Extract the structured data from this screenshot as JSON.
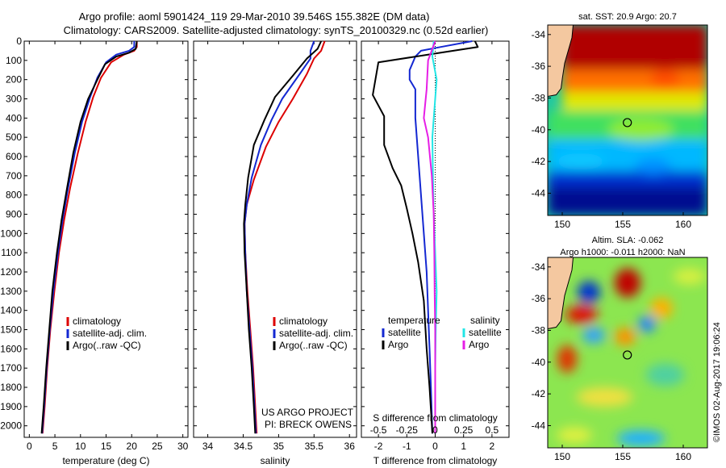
{
  "header": {
    "line1": "Argo profile: aoml 5901424_119 29-Mar-2010 39.546S 155.382E (DM data)",
    "line2": "Climatology: CARS2009. Satellite-adjusted climatology: synTS_20100329.nc (0.52d earlier)"
  },
  "colors": {
    "climatology": "#dd0000",
    "satellite": "#1428d2",
    "argo": "#000000",
    "salinity_satellite": "#22e6e6",
    "salinity_argo": "#e61ee6"
  },
  "depth_axis": {
    "ylim": [
      2060,
      0
    ],
    "ticks": [
      0,
      100,
      200,
      300,
      400,
      500,
      600,
      700,
      800,
      900,
      1000,
      1100,
      1200,
      1300,
      1400,
      1500,
      1600,
      1700,
      1800,
      1900,
      2000
    ]
  },
  "chart_data": [
    {
      "id": "temperature",
      "type": "line",
      "xlabel": "temperature (deg C)",
      "xlim": [
        -1,
        31
      ],
      "xticks": [
        0,
        5,
        10,
        15,
        20,
        25,
        30
      ],
      "legend": [
        "climatology",
        "satellite-adj. clim.",
        "Argo(..raw -QC)"
      ],
      "series": [
        {
          "name": "climatology",
          "color": "climatology",
          "points": [
            [
              21.0,
              0
            ],
            [
              21.0,
              30
            ],
            [
              20.5,
              50
            ],
            [
              18.5,
              70
            ],
            [
              16.0,
              110
            ],
            [
              14.0,
              190
            ],
            [
              12.5,
              290
            ],
            [
              11.0,
              420
            ],
            [
              9.5,
              580
            ],
            [
              8.0,
              760
            ],
            [
              6.8,
              930
            ],
            [
              5.8,
              1100
            ],
            [
              4.9,
              1300
            ],
            [
              4.1,
              1500
            ],
            [
              3.5,
              1700
            ],
            [
              3.0,
              1900
            ],
            [
              2.6,
              2040
            ]
          ]
        },
        {
          "name": "satellite-adj. clim.",
          "color": "satellite",
          "points": [
            [
              20.5,
              0
            ],
            [
              20.5,
              30
            ],
            [
              19.5,
              50
            ],
            [
              17.0,
              70
            ],
            [
              15.0,
              110
            ],
            [
              13.3,
              190
            ],
            [
              11.9,
              290
            ],
            [
              10.3,
              420
            ],
            [
              8.9,
              580
            ],
            [
              7.6,
              760
            ],
            [
              6.5,
              930
            ],
            [
              5.6,
              1100
            ],
            [
              4.7,
              1300
            ],
            [
              4.0,
              1500
            ],
            [
              3.4,
              1700
            ],
            [
              2.9,
              1900
            ],
            [
              2.5,
              2040
            ]
          ]
        },
        {
          "name": "Argo(..raw -QC)",
          "color": "argo",
          "points": [
            [
              21.0,
              0
            ],
            [
              20.8,
              40
            ],
            [
              19.5,
              60
            ],
            [
              17.0,
              80
            ],
            [
              14.8,
              120
            ],
            [
              13.3,
              200
            ],
            [
              11.5,
              300
            ],
            [
              10.0,
              420
            ],
            [
              8.6,
              580
            ],
            [
              7.4,
              760
            ],
            [
              6.3,
              930
            ],
            [
              5.4,
              1100
            ],
            [
              4.5,
              1300
            ],
            [
              3.9,
              1500
            ],
            [
              3.3,
              1700
            ],
            [
              2.8,
              1900
            ],
            [
              2.4,
              2040
            ]
          ]
        }
      ]
    },
    {
      "id": "salinity",
      "type": "line",
      "xlabel": "salinity",
      "xlim": [
        33.8,
        36.1
      ],
      "xticks": [
        34,
        34.5,
        35,
        35.5,
        36
      ],
      "tick_labels": [
        "34",
        "34.5",
        "35",
        "35.5",
        "36"
      ],
      "legend": [
        "climatology",
        "satellite-adj. clim.",
        "Argo(..raw -QC)"
      ],
      "annotation": [
        "US ARGO PROJECT",
        "PI: BRECK OWENS"
      ],
      "series": [
        {
          "name": "climatology",
          "color": "climatology",
          "points": [
            [
              35.65,
              0
            ],
            [
              35.6,
              50
            ],
            [
              35.5,
              90
            ],
            [
              35.4,
              170
            ],
            [
              35.2,
              300
            ],
            [
              35.0,
              420
            ],
            [
              34.82,
              550
            ],
            [
              34.65,
              720
            ],
            [
              34.55,
              850
            ],
            [
              34.52,
              950
            ],
            [
              34.53,
              1100
            ],
            [
              34.56,
              1300
            ],
            [
              34.6,
              1500
            ],
            [
              34.64,
              1700
            ],
            [
              34.67,
              1900
            ],
            [
              34.69,
              2040
            ]
          ]
        },
        {
          "name": "satellite-adj. clim.",
          "color": "satellite",
          "points": [
            [
              35.5,
              0
            ],
            [
              35.45,
              50
            ],
            [
              35.45,
              90
            ],
            [
              35.3,
              170
            ],
            [
              35.05,
              300
            ],
            [
              34.9,
              410
            ],
            [
              34.75,
              540
            ],
            [
              34.62,
              710
            ],
            [
              34.55,
              850
            ],
            [
              34.52,
              950
            ],
            [
              34.53,
              1100
            ],
            [
              34.55,
              1300
            ],
            [
              34.59,
              1500
            ],
            [
              34.63,
              1700
            ],
            [
              34.66,
              1900
            ],
            [
              34.68,
              2040
            ]
          ]
        },
        {
          "name": "Argo(..raw -QC)",
          "color": "argo",
          "points": [
            [
              35.6,
              0
            ],
            [
              35.55,
              40
            ],
            [
              35.4,
              90
            ],
            [
              35.2,
              180
            ],
            [
              34.95,
              290
            ],
            [
              34.8,
              410
            ],
            [
              34.65,
              540
            ],
            [
              34.57,
              710
            ],
            [
              34.53,
              850
            ],
            [
              34.51,
              950
            ],
            [
              34.52,
              1100
            ],
            [
              34.55,
              1300
            ],
            [
              34.58,
              1500
            ],
            [
              34.62,
              1700
            ],
            [
              34.65,
              1900
            ],
            [
              34.67,
              2040
            ]
          ]
        }
      ]
    },
    {
      "id": "difference",
      "type": "line",
      "xlabel": "T difference from climatology",
      "x2label": "S difference from climatology",
      "xlim": [
        -2.6,
        2.6
      ],
      "xticks": [
        -2,
        -1,
        0,
        1,
        2
      ],
      "s_ticks": [
        -0.5,
        -0.25,
        0,
        0.25,
        0.5
      ],
      "s_tick_labels": [
        "-0.5",
        "-0.25",
        "0",
        "0.25",
        "0.5"
      ],
      "legend_temperature": {
        "title": "temperature",
        "items": [
          "satellite",
          "Argo"
        ]
      },
      "legend_salinity": {
        "title": "salinity",
        "items": [
          "satellite",
          "Argo"
        ]
      },
      "series": [
        {
          "name": "temperature satellite",
          "color": "satellite",
          "points": [
            [
              1.3,
              0
            ],
            [
              0.2,
              30
            ],
            [
              -0.5,
              50
            ],
            [
              -0.7,
              80
            ],
            [
              -0.9,
              150
            ],
            [
              -0.9,
              200
            ],
            [
              -0.7,
              250
            ],
            [
              -0.7,
              400
            ],
            [
              -0.6,
              600
            ],
            [
              -0.5,
              800
            ],
            [
              -0.4,
              1000
            ],
            [
              -0.3,
              1200
            ],
            [
              -0.25,
              1400
            ],
            [
              -0.2,
              1600
            ],
            [
              -0.15,
              1800
            ],
            [
              -0.1,
              2040
            ]
          ]
        },
        {
          "name": "temperature Argo",
          "color": "argo",
          "points": [
            [
              1.4,
              0
            ],
            [
              1.5,
              30
            ],
            [
              0.2,
              60
            ],
            [
              -2.0,
              110
            ],
            [
              -2.2,
              280
            ],
            [
              -1.8,
              390
            ],
            [
              -1.8,
              540
            ],
            [
              -1.5,
              660
            ],
            [
              -1.2,
              750
            ],
            [
              -1.0,
              870
            ],
            [
              -0.8,
              1000
            ],
            [
              -0.6,
              1150
            ],
            [
              -0.4,
              1350
            ],
            [
              -0.3,
              1600
            ],
            [
              -0.2,
              1800
            ],
            [
              -0.1,
              2040
            ]
          ]
        },
        {
          "name": "salinity satellite",
          "color": "salinity_satellite",
          "points": [
            [
              -0.05,
              0
            ],
            [
              -0.1,
              80
            ],
            [
              0.05,
              200
            ],
            [
              0.0,
              300
            ],
            [
              -0.05,
              400
            ],
            [
              -0.1,
              500
            ],
            [
              -0.08,
              700
            ],
            [
              -0.05,
              900
            ],
            [
              0.0,
              1100
            ],
            [
              0.05,
              1300
            ],
            [
              0.02,
              1500
            ],
            [
              0.0,
              1700
            ],
            [
              0.0,
              2040
            ]
          ]
        },
        {
          "name": "salinity Argo",
          "color": "salinity_argo",
          "points": [
            [
              0.0,
              0
            ],
            [
              -0.25,
              100
            ],
            [
              -0.3,
              250
            ],
            [
              -0.4,
              400
            ],
            [
              -0.25,
              500
            ],
            [
              -0.12,
              700
            ],
            [
              -0.05,
              900
            ],
            [
              -0.03,
              1100
            ],
            [
              -0.02,
              1300
            ],
            [
              0.0,
              1500
            ],
            [
              0.0,
              1700
            ],
            [
              0.0,
              2040
            ]
          ]
        }
      ]
    },
    {
      "id": "sst_map",
      "type": "heatmap",
      "title": "sat. SST: 20.9  Argo: 20.7",
      "xlim": [
        148.8,
        162
      ],
      "ylim": [
        -45.4,
        -33.4
      ],
      "xticks": [
        150,
        155,
        160
      ],
      "yticks": [
        -34,
        -36,
        -38,
        -40,
        -42,
        -44
      ],
      "profile_location": [
        155.38,
        -39.55
      ],
      "colorscale": [
        "#000090",
        "#0040ff",
        "#00b0ff",
        "#30e070",
        "#c0f000",
        "#ffc000",
        "#ff4000",
        "#b00000"
      ]
    },
    {
      "id": "sla_map",
      "type": "heatmap",
      "title": "Altim. SLA: -0.062",
      "subtitle": "Argo h1000: -0.011  h2000: NaN",
      "xlim": [
        148.8,
        162
      ],
      "ylim": [
        -45.4,
        -33.4
      ],
      "xticks": [
        150,
        155,
        160
      ],
      "yticks": [
        -34,
        -36,
        -38,
        -40,
        -42,
        -44
      ],
      "profile_location": [
        155.38,
        -39.55
      ],
      "colorscale": [
        "#0000c0",
        "#2a9aff",
        "#70e070",
        "#c8f040",
        "#ffb000",
        "#c00000"
      ]
    }
  ],
  "footer_credit": "©IMOS 02-Aug-2017 19:06:24"
}
